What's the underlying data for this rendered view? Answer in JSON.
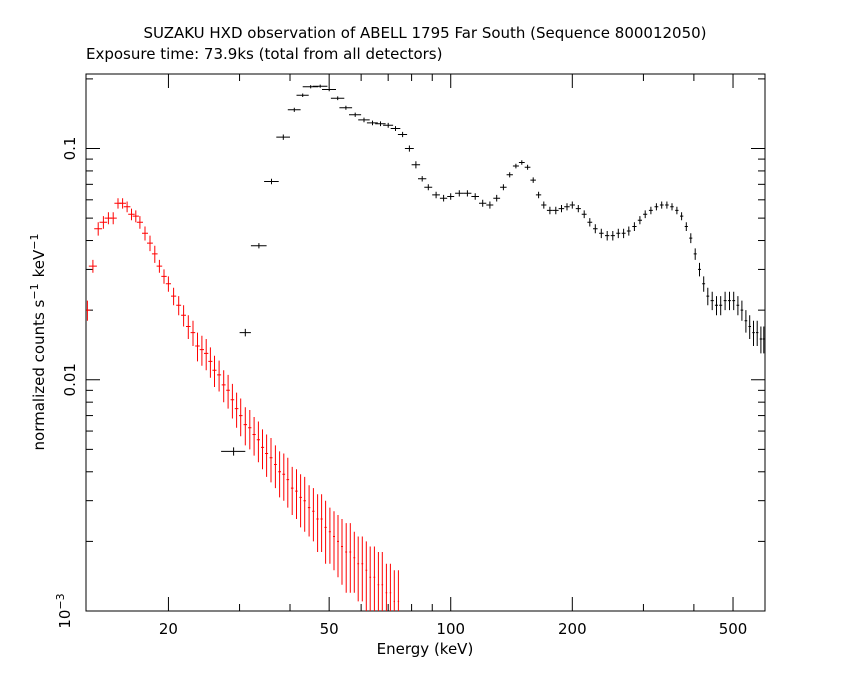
{
  "chart_data": {
    "type": "scatter",
    "title": "SUZAKU HXD observation of ABELL 1795 Far South (Sequence 800012050)",
    "subtitle": "Exposure time: 73.9ks (total from all detectors)",
    "xlabel": "Energy (keV)",
    "ylabel": "normalized counts s",
    "ylabel_unit": "keV",
    "ylabel_exp": "−1",
    "x_scale": "log",
    "y_scale": "log",
    "xlim": [
      12.5,
      600
    ],
    "ylim": [
      0.001,
      0.21
    ],
    "x_ticks": [
      20,
      50,
      100,
      200,
      500
    ],
    "x_tick_labels": [
      "20",
      "50",
      "100",
      "200",
      "500"
    ],
    "y_ticks": [
      0.01,
      0.1
    ],
    "y_tick_labels": [
      "0.01",
      "0.1"
    ],
    "y_bottom_label": "10",
    "y_bottom_label_exp": "−3",
    "grid": false,
    "series": [
      {
        "color": "#000000",
        "points": [
          [
            29.0,
            0.0049,
            2.0,
            0.0002
          ],
          [
            31.0,
            0.016,
            1.0,
            0.0006
          ],
          [
            33.5,
            0.038,
            1.5,
            0.001
          ],
          [
            36.0,
            0.072,
            1.5,
            0.002
          ],
          [
            38.5,
            0.112,
            1.5,
            0.003
          ],
          [
            41.0,
            0.147,
            1.5,
            0.003
          ],
          [
            43.0,
            0.17,
            1.5,
            0.003
          ],
          [
            45.0,
            0.185,
            2.0,
            0.003
          ],
          [
            47.5,
            0.186,
            2.0,
            0.003
          ],
          [
            50.0,
            0.18,
            2.0,
            0.003
          ],
          [
            52.5,
            0.165,
            2.0,
            0.003
          ],
          [
            55.0,
            0.15,
            2.0,
            0.003
          ],
          [
            58.0,
            0.14,
            2.0,
            0.003
          ],
          [
            61.0,
            0.133,
            2.0,
            0.003
          ],
          [
            64.0,
            0.129,
            2.0,
            0.003
          ],
          [
            67.0,
            0.128,
            2.0,
            0.003
          ],
          [
            70.0,
            0.126,
            2.0,
            0.003
          ],
          [
            73.0,
            0.122,
            2.0,
            0.003
          ],
          [
            76.0,
            0.115,
            2.0,
            0.003
          ],
          [
            79.0,
            0.1,
            2.0,
            0.003
          ],
          [
            82.0,
            0.085,
            2.0,
            0.003
          ],
          [
            85.0,
            0.074,
            2.0,
            0.002
          ],
          [
            88.0,
            0.068,
            2.0,
            0.002
          ],
          [
            92.0,
            0.063,
            2.0,
            0.002
          ],
          [
            96.0,
            0.061,
            2.0,
            0.002
          ],
          [
            100.0,
            0.062,
            2.0,
            0.002
          ],
          [
            105.0,
            0.064,
            2.5,
            0.002
          ],
          [
            110.0,
            0.064,
            2.5,
            0.002
          ],
          [
            115.0,
            0.062,
            2.5,
            0.002
          ],
          [
            120.0,
            0.058,
            2.5,
            0.002
          ],
          [
            125.0,
            0.057,
            2.5,
            0.002
          ],
          [
            130.0,
            0.061,
            2.5,
            0.002
          ],
          [
            135.0,
            0.068,
            2.5,
            0.002
          ],
          [
            140.0,
            0.077,
            2.5,
            0.002
          ],
          [
            145.0,
            0.084,
            2.5,
            0.002
          ],
          [
            150.0,
            0.087,
            2.5,
            0.002
          ],
          [
            155.0,
            0.083,
            2.5,
            0.002
          ],
          [
            160.0,
            0.073,
            2.5,
            0.002
          ],
          [
            165.0,
            0.063,
            2.5,
            0.002
          ],
          [
            170.0,
            0.057,
            2.5,
            0.002
          ],
          [
            176.0,
            0.054,
            3.0,
            0.002
          ],
          [
            182.0,
            0.054,
            3.0,
            0.002
          ],
          [
            188.0,
            0.055,
            3.0,
            0.002
          ],
          [
            194.0,
            0.056,
            3.0,
            0.002
          ],
          [
            200.0,
            0.057,
            3.0,
            0.002
          ],
          [
            207.0,
            0.055,
            3.0,
            0.002
          ],
          [
            214.0,
            0.052,
            3.0,
            0.002
          ],
          [
            221.0,
            0.048,
            3.0,
            0.002
          ],
          [
            228.0,
            0.045,
            3.0,
            0.002
          ],
          [
            236.0,
            0.043,
            3.0,
            0.002
          ],
          [
            244.0,
            0.042,
            3.0,
            0.002
          ],
          [
            252.0,
            0.042,
            3.0,
            0.002
          ],
          [
            260.0,
            0.043,
            3.0,
            0.002
          ],
          [
            268.0,
            0.043,
            3.0,
            0.002
          ],
          [
            276.0,
            0.044,
            3.0,
            0.002
          ],
          [
            285.0,
            0.046,
            3.5,
            0.002
          ],
          [
            294.0,
            0.049,
            3.5,
            0.002
          ],
          [
            303.0,
            0.052,
            3.5,
            0.002
          ],
          [
            313.0,
            0.054,
            3.5,
            0.002
          ],
          [
            323.0,
            0.056,
            3.5,
            0.002
          ],
          [
            333.0,
            0.057,
            3.5,
            0.002
          ],
          [
            343.0,
            0.057,
            3.5,
            0.002
          ],
          [
            353.0,
            0.056,
            3.5,
            0.002
          ],
          [
            363.0,
            0.054,
            3.5,
            0.002
          ],
          [
            373.0,
            0.051,
            3.5,
            0.002
          ],
          [
            383.0,
            0.046,
            3.5,
            0.002
          ],
          [
            393.0,
            0.041,
            3.5,
            0.002
          ],
          [
            403.0,
            0.035,
            3.5,
            0.002
          ],
          [
            413.0,
            0.03,
            3.5,
            0.002
          ],
          [
            423.0,
            0.026,
            3.5,
            0.002
          ],
          [
            433.0,
            0.023,
            3.5,
            0.002
          ],
          [
            444.0,
            0.022,
            4.0,
            0.002
          ],
          [
            455.0,
            0.021,
            4.0,
            0.002
          ],
          [
            466.0,
            0.021,
            4.0,
            0.002
          ],
          [
            478.0,
            0.022,
            4.0,
            0.002
          ],
          [
            490.0,
            0.022,
            4.0,
            0.002
          ],
          [
            502.0,
            0.022,
            4.0,
            0.002
          ],
          [
            514.0,
            0.021,
            4.0,
            0.002
          ],
          [
            526.0,
            0.02,
            4.0,
            0.002
          ],
          [
            538.0,
            0.018,
            4.0,
            0.002
          ],
          [
            550.0,
            0.017,
            4.0,
            0.002
          ],
          [
            562.0,
            0.016,
            4.0,
            0.002
          ],
          [
            574.0,
            0.016,
            4.0,
            0.002
          ],
          [
            586.0,
            0.015,
            4.0,
            0.002
          ],
          [
            596.0,
            0.015,
            4.0,
            0.002
          ]
        ]
      },
      {
        "color": "#ff0000",
        "points": [
          [
            12.6,
            0.02,
            0.2,
            0.002
          ],
          [
            13.0,
            0.031,
            0.3,
            0.002
          ],
          [
            13.4,
            0.045,
            0.3,
            0.003
          ],
          [
            13.8,
            0.048,
            0.3,
            0.003
          ],
          [
            14.2,
            0.05,
            0.3,
            0.003
          ],
          [
            14.6,
            0.05,
            0.3,
            0.003
          ],
          [
            15.0,
            0.058,
            0.3,
            0.003
          ],
          [
            15.4,
            0.058,
            0.3,
            0.003
          ],
          [
            15.8,
            0.056,
            0.3,
            0.003
          ],
          [
            16.2,
            0.052,
            0.3,
            0.003
          ],
          [
            16.6,
            0.051,
            0.3,
            0.003
          ],
          [
            17.0,
            0.048,
            0.3,
            0.003
          ],
          [
            17.5,
            0.043,
            0.3,
            0.003
          ],
          [
            18.0,
            0.039,
            0.3,
            0.003
          ],
          [
            18.5,
            0.035,
            0.3,
            0.003
          ],
          [
            19.0,
            0.031,
            0.3,
            0.002
          ],
          [
            19.5,
            0.028,
            0.3,
            0.002
          ],
          [
            20.0,
            0.026,
            0.3,
            0.002
          ],
          [
            20.6,
            0.023,
            0.3,
            0.002
          ],
          [
            21.2,
            0.021,
            0.3,
            0.002
          ],
          [
            21.8,
            0.019,
            0.3,
            0.002
          ],
          [
            22.4,
            0.017,
            0.3,
            0.002
          ],
          [
            23.0,
            0.016,
            0.3,
            0.002
          ],
          [
            23.6,
            0.014,
            0.3,
            0.002
          ],
          [
            24.2,
            0.0135,
            0.3,
            0.002
          ],
          [
            24.8,
            0.013,
            0.3,
            0.002
          ],
          [
            25.4,
            0.012,
            0.3,
            0.0018
          ],
          [
            26.0,
            0.011,
            0.3,
            0.0017
          ],
          [
            26.7,
            0.0105,
            0.3,
            0.0016
          ],
          [
            27.4,
            0.0095,
            0.3,
            0.0015
          ],
          [
            28.1,
            0.009,
            0.3,
            0.0015
          ],
          [
            28.8,
            0.0082,
            0.3,
            0.0014
          ],
          [
            29.5,
            0.0075,
            0.3,
            0.0013
          ],
          [
            30.2,
            0.007,
            0.3,
            0.0013
          ],
          [
            31.0,
            0.0064,
            0.3,
            0.0012
          ],
          [
            31.8,
            0.0062,
            0.3,
            0.0012
          ],
          [
            32.6,
            0.0058,
            0.3,
            0.0011
          ],
          [
            33.4,
            0.0055,
            0.3,
            0.0011
          ],
          [
            34.2,
            0.0051,
            0.3,
            0.001
          ],
          [
            35.0,
            0.0048,
            0.3,
            0.001
          ],
          [
            35.9,
            0.0046,
            0.3,
            0.001
          ],
          [
            36.8,
            0.0043,
            0.3,
            0.0009
          ],
          [
            37.7,
            0.004,
            0.3,
            0.0009
          ],
          [
            38.6,
            0.0039,
            0.3,
            0.0009
          ],
          [
            39.5,
            0.0037,
            0.3,
            0.0009
          ],
          [
            40.5,
            0.0034,
            0.3,
            0.0008
          ],
          [
            41.5,
            0.0033,
            0.3,
            0.0008
          ],
          [
            42.5,
            0.0031,
            0.3,
            0.0008
          ],
          [
            43.5,
            0.003,
            0.3,
            0.0008
          ],
          [
            44.6,
            0.0028,
            0.3,
            0.0007
          ],
          [
            45.7,
            0.0027,
            0.3,
            0.0007
          ],
          [
            46.8,
            0.0025,
            0.3,
            0.0007
          ],
          [
            47.9,
            0.0025,
            0.3,
            0.0007
          ],
          [
            49.0,
            0.0023,
            0.3,
            0.0007
          ],
          [
            50.2,
            0.0022,
            0.3,
            0.0006
          ],
          [
            51.4,
            0.0021,
            0.3,
            0.0006
          ],
          [
            52.6,
            0.002,
            0.3,
            0.0006
          ],
          [
            53.8,
            0.0019,
            0.3,
            0.0006
          ],
          [
            55.1,
            0.0018,
            0.3,
            0.0006
          ],
          [
            56.4,
            0.0018,
            0.3,
            0.0006
          ],
          [
            57.7,
            0.0017,
            0.3,
            0.0005
          ],
          [
            59.0,
            0.0016,
            0.3,
            0.0005
          ],
          [
            60.4,
            0.0016,
            0.3,
            0.0005
          ],
          [
            61.8,
            0.0015,
            0.3,
            0.0005
          ],
          [
            63.2,
            0.0014,
            0.3,
            0.0005
          ],
          [
            64.7,
            0.0014,
            0.3,
            0.0005
          ],
          [
            66.2,
            0.0013,
            0.3,
            0.0005
          ],
          [
            67.7,
            0.0013,
            0.3,
            0.0005
          ],
          [
            69.3,
            0.0012,
            0.3,
            0.0004
          ],
          [
            70.9,
            0.0012,
            0.3,
            0.0004
          ],
          [
            72.5,
            0.0011,
            0.3,
            0.0004
          ],
          [
            74.2,
            0.0011,
            0.3,
            0.0004
          ]
        ]
      }
    ]
  }
}
